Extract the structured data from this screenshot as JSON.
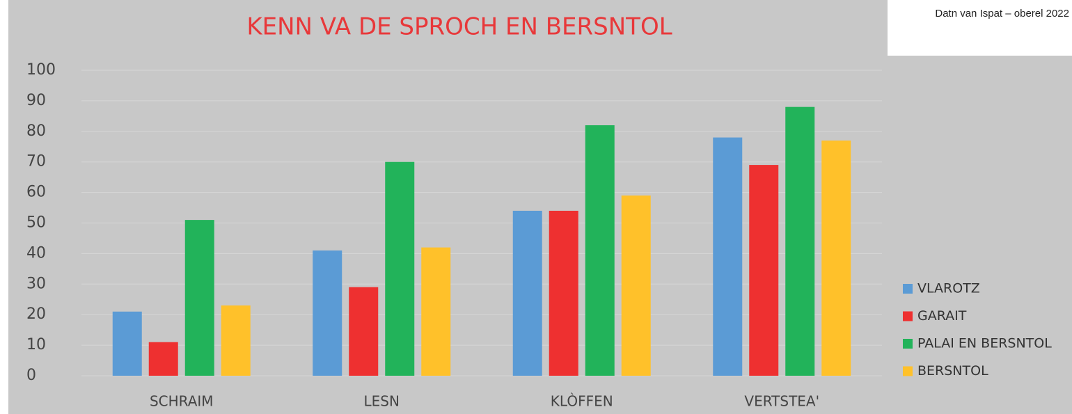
{
  "chart_data": {
    "type": "bar",
    "title": "KENN VA DE SPROCH EN BERSNTOL",
    "source": "Datn van Ispat – oberel 2022",
    "categories": [
      "SCHRAIM",
      "LESN",
      "KLÒFFEN",
      "VERTSTEA'"
    ],
    "series": [
      {
        "name": "VLAROTZ",
        "color": "#5b9bd5",
        "values": [
          21,
          41,
          54,
          78
        ]
      },
      {
        "name": "GARAIT",
        "color": "#ee3030",
        "values": [
          11,
          29,
          54,
          69
        ]
      },
      {
        "name": "PALAI EN BERSNTOL",
        "color": "#22b35a",
        "values": [
          51,
          70,
          82,
          88
        ]
      },
      {
        "name": "BERSNTOL",
        "color": "#ffc12a",
        "values": [
          23,
          42,
          59,
          77
        ]
      }
    ],
    "ylim": [
      0,
      100
    ],
    "yticks": [
      0,
      10,
      20,
      30,
      40,
      50,
      60,
      70,
      80,
      90,
      100
    ],
    "grid": true,
    "legend": "right"
  }
}
